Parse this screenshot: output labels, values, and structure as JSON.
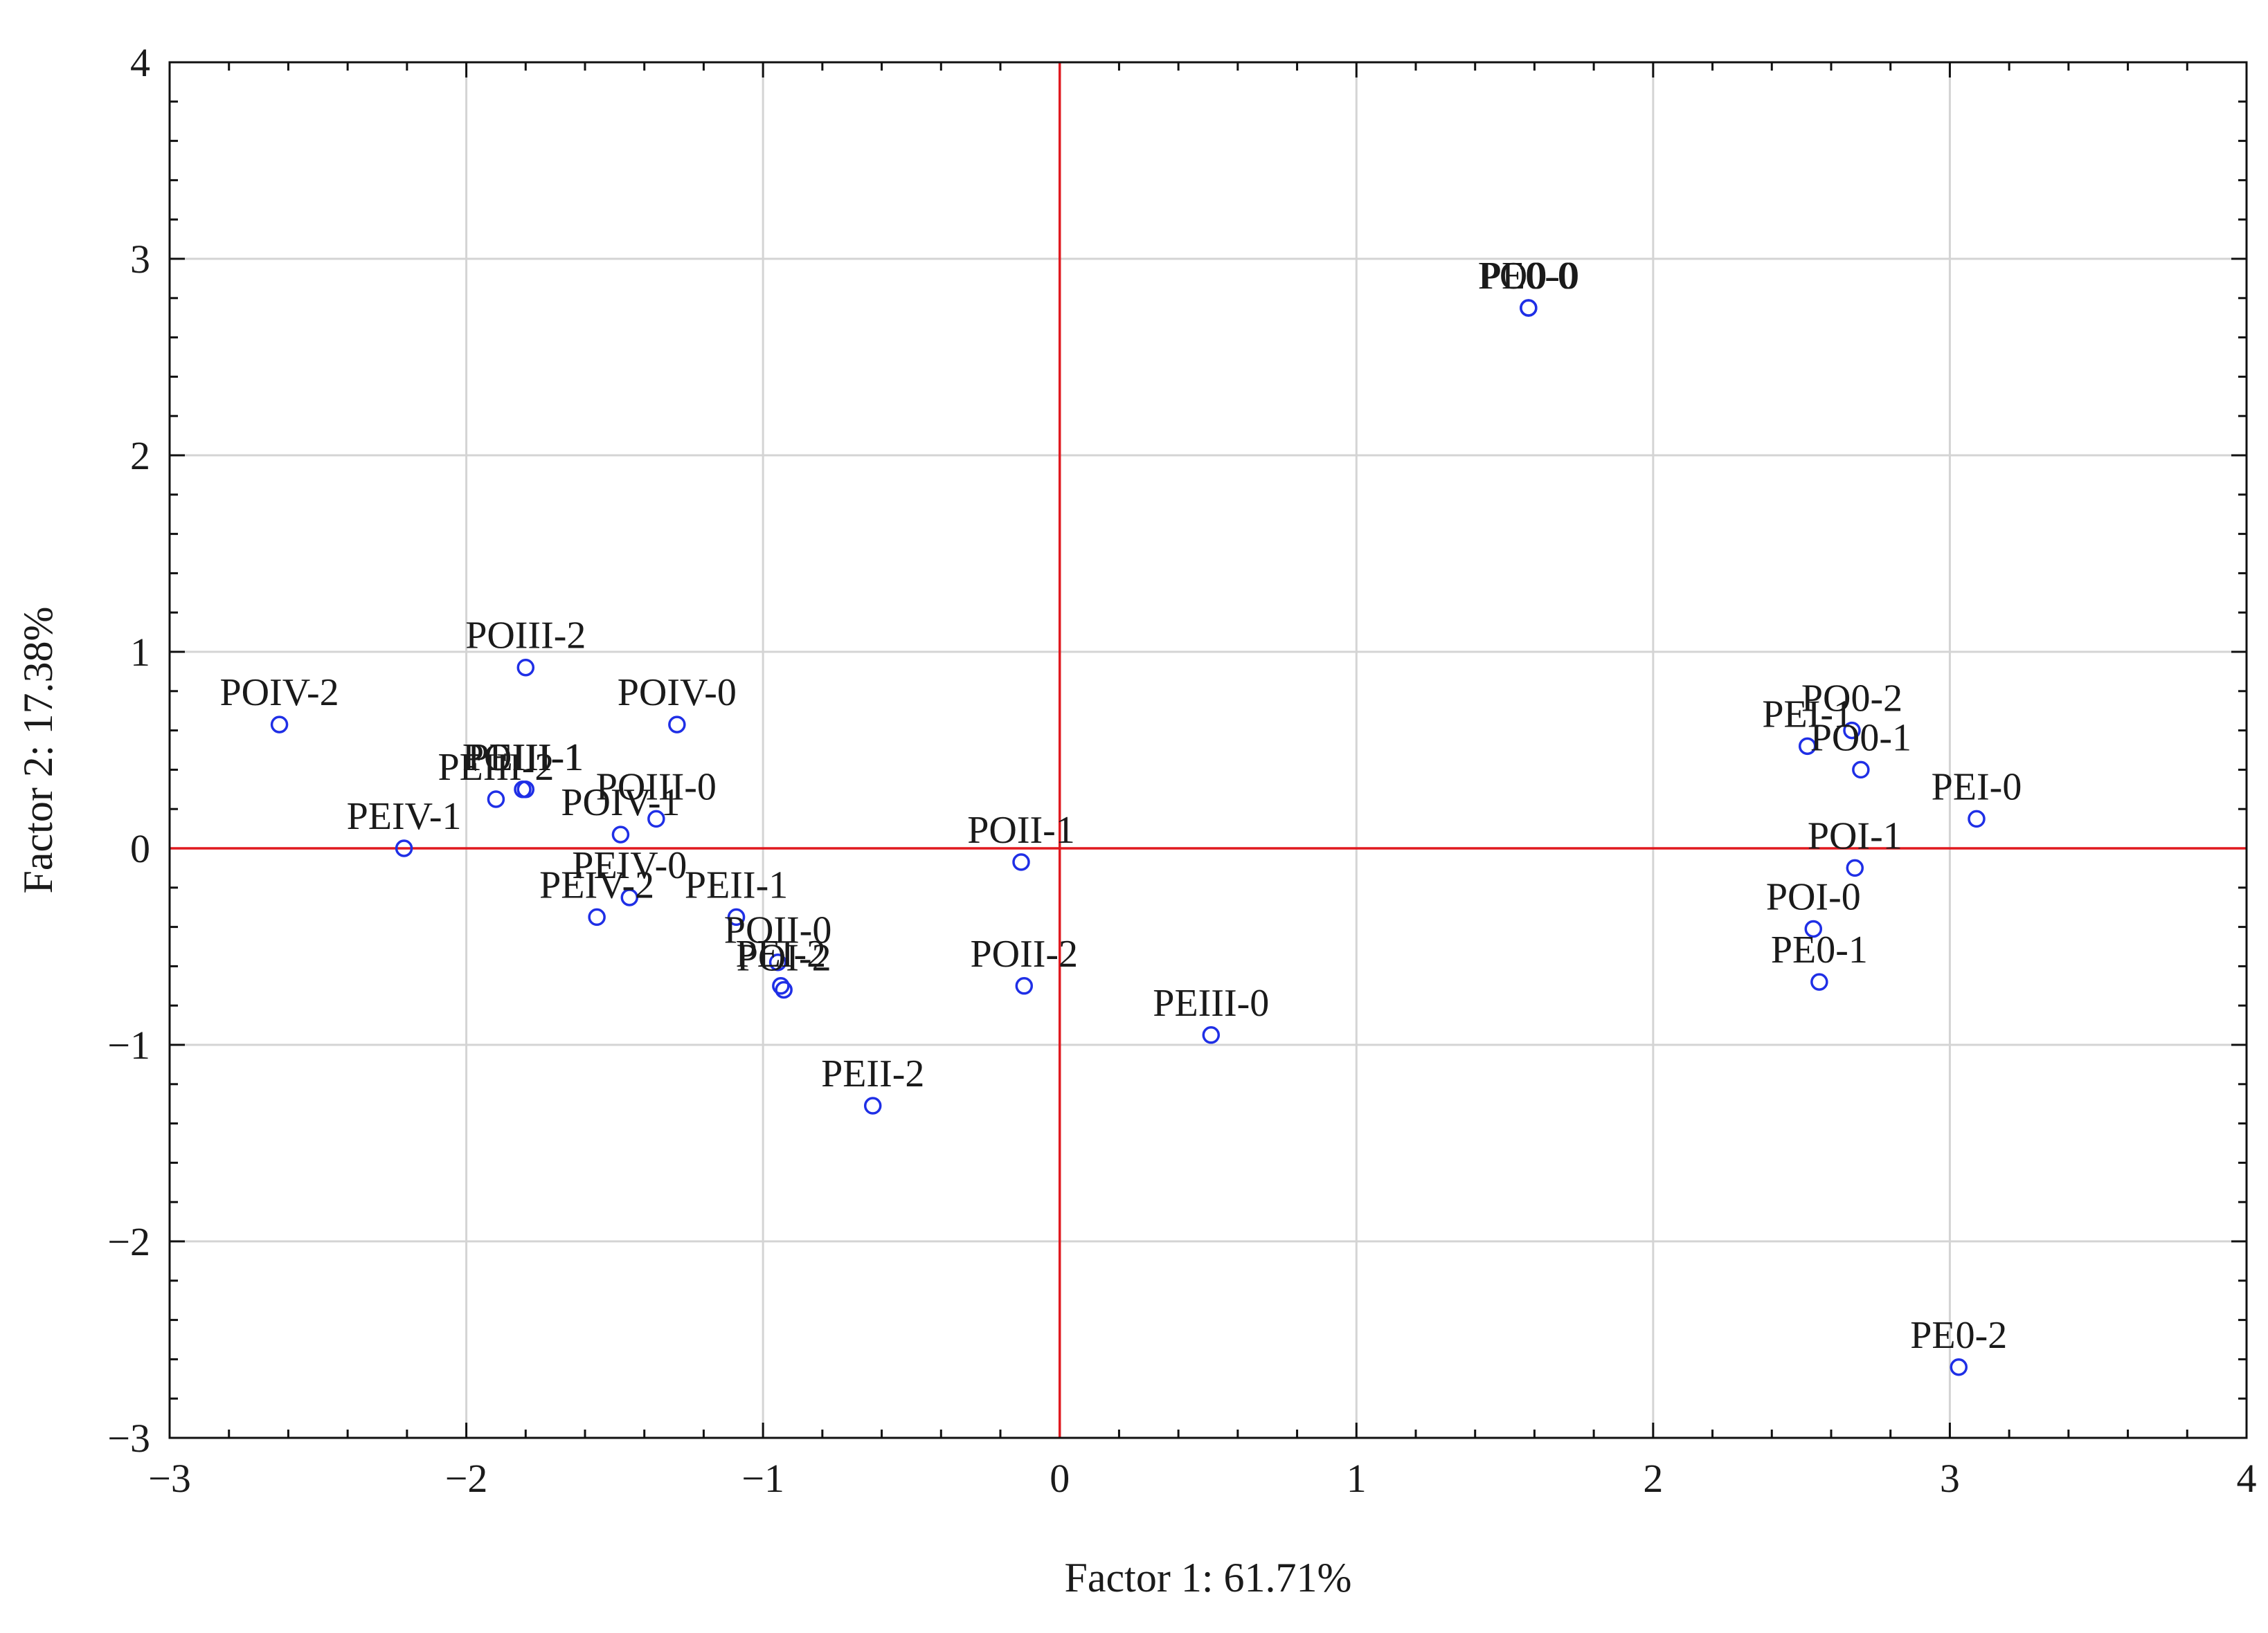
{
  "chart_data": {
    "type": "scatter",
    "xlabel": "Factor 1: 61.71%",
    "ylabel": "Factor 2: 17.38%",
    "xlim": [
      -3,
      4
    ],
    "ylim": [
      -3,
      4
    ],
    "x_ticks": [
      -3,
      -2,
      -1,
      0,
      1,
      2,
      3,
      4
    ],
    "y_ticks": [
      -3,
      -2,
      -1,
      0,
      1,
      2,
      3,
      4
    ],
    "x_tick_labels": [
      "−3",
      "−2",
      "−1",
      "0",
      "1",
      "2",
      "3",
      "4"
    ],
    "y_tick_labels": [
      "−3",
      "−2",
      "−1",
      "0",
      "1",
      "2",
      "3",
      "4"
    ],
    "grid": true,
    "reference_lines": {
      "x": 0,
      "y": 0,
      "color": "#e0191f"
    },
    "marker": {
      "shape": "open-circle",
      "color": "#1f2fe6"
    },
    "points": [
      {
        "label": "PO0-0",
        "x": 1.58,
        "y": 2.75
      },
      {
        "label": "PE0-0",
        "x": 1.58,
        "y": 2.75
      },
      {
        "label": "PO0-2",
        "x": 2.67,
        "y": 0.6
      },
      {
        "label": "PEI-1",
        "x": 2.52,
        "y": 0.52
      },
      {
        "label": "PO0-1",
        "x": 2.7,
        "y": 0.4
      },
      {
        "label": "PEI-0",
        "x": 3.09,
        "y": 0.15
      },
      {
        "label": "POI-1",
        "x": 2.68,
        "y": -0.1
      },
      {
        "label": "POI-0",
        "x": 2.54,
        "y": -0.41
      },
      {
        "label": "PE0-1",
        "x": 2.56,
        "y": -0.68
      },
      {
        "label": "PE0-2",
        "x": 3.03,
        "y": -2.64
      },
      {
        "label": "POIV-2",
        "x": -2.63,
        "y": 0.63
      },
      {
        "label": "POIII-2",
        "x": -1.8,
        "y": 0.92
      },
      {
        "label": "POIV-0",
        "x": -1.29,
        "y": 0.63
      },
      {
        "label": "PEIV-1",
        "x": -2.21,
        "y": 0.0
      },
      {
        "label": "PEIII-2",
        "x": -1.9,
        "y": 0.25
      },
      {
        "label": "POIII-1",
        "x": -1.81,
        "y": 0.3
      },
      {
        "label": "PEIII-1",
        "x": -1.8,
        "y": 0.3
      },
      {
        "label": "POIII-0",
        "x": -1.36,
        "y": 0.15
      },
      {
        "label": "POIV-1",
        "x": -1.48,
        "y": 0.07
      },
      {
        "label": "PEIV-0",
        "x": -1.45,
        "y": -0.25
      },
      {
        "label": "PEIV-2",
        "x": -1.56,
        "y": -0.35
      },
      {
        "label": "PEII-1",
        "x": -1.09,
        "y": -0.35
      },
      {
        "label": "POII-0",
        "x": -0.95,
        "y": -0.58
      },
      {
        "label": "POI-2",
        "x": -0.93,
        "y": -0.72
      },
      {
        "label": "PEI-2",
        "x": -0.94,
        "y": -0.7
      },
      {
        "label": "POII-1",
        "x": -0.13,
        "y": -0.07
      },
      {
        "label": "POII-2",
        "x": -0.12,
        "y": -0.7
      },
      {
        "label": "PEII-2",
        "x": -0.63,
        "y": -1.31
      },
      {
        "label": "PEIII-0",
        "x": 0.51,
        "y": -0.95
      }
    ]
  }
}
